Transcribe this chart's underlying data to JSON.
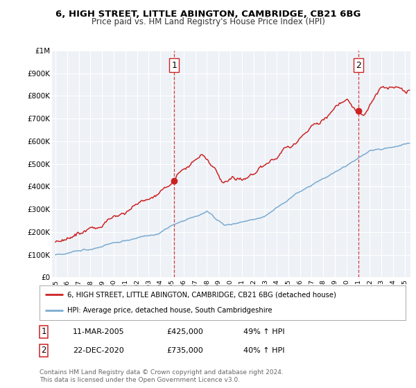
{
  "title_line1": "6, HIGH STREET, LITTLE ABINGTON, CAMBRIDGE, CB21 6BG",
  "title_line2": "Price paid vs. HM Land Registry's House Price Index (HPI)",
  "ylabel_ticks": [
    "£0",
    "£100K",
    "£200K",
    "£300K",
    "£400K",
    "£500K",
    "£600K",
    "£700K",
    "£800K",
    "£900K",
    "£1M"
  ],
  "ylim": [
    0,
    1000000
  ],
  "xlim_start": 1994.7,
  "xlim_end": 2025.5,
  "red_color": "#cc2222",
  "blue_color": "#7aaad0",
  "plot_bg_color": "#eef2f7",
  "marker1_x": 2005.19,
  "marker1_y": 425000,
  "marker2_x": 2021.0,
  "marker2_y": 735000,
  "legend_line1": "6, HIGH STREET, LITTLE ABINGTON, CAMBRIDGE, CB21 6BG (detached house)",
  "legend_line2": "HPI: Average price, detached house, South Cambridgeshire",
  "ann1_num": "1",
  "ann1_date": "11-MAR-2005",
  "ann1_price": "£425,000",
  "ann1_hpi": "49% ↑ HPI",
  "ann2_num": "2",
  "ann2_date": "22-DEC-2020",
  "ann2_price": "£735,000",
  "ann2_hpi": "40% ↑ HPI",
  "footer": "Contains HM Land Registry data © Crown copyright and database right 2024.\nThis data is licensed under the Open Government Licence v3.0.",
  "background_color": "#ffffff",
  "grid_color": "#ffffff"
}
